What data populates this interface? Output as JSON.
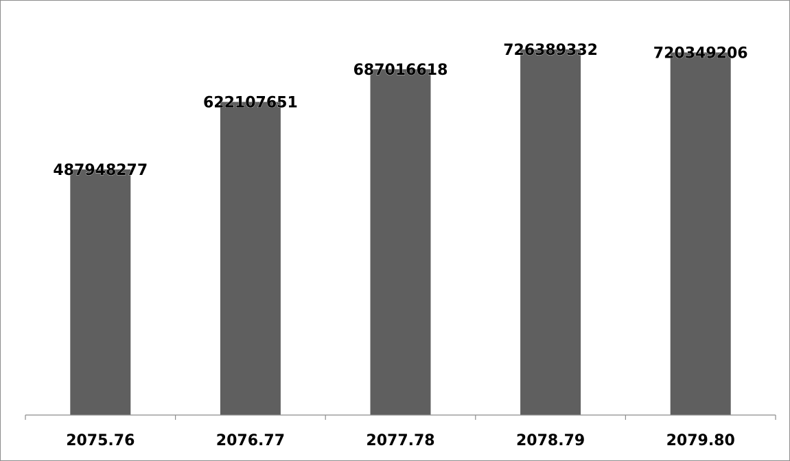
{
  "chart_data": {
    "type": "bar",
    "categories": [
      "2075.76",
      "2076.77",
      "2077.78",
      "2078.79",
      "2079.80"
    ],
    "values": [
      487948277,
      622107651,
      687016618,
      726389332,
      720349206
    ],
    "data_labels": [
      "487948277",
      "622107651",
      "687016618",
      "726389332",
      "720349206"
    ],
    "title": "",
    "xlabel": "",
    "ylabel": "",
    "ylim": [
      0,
      800000000
    ],
    "grid": false,
    "legend": "none",
    "bar_color": "#5f5f5f"
  }
}
